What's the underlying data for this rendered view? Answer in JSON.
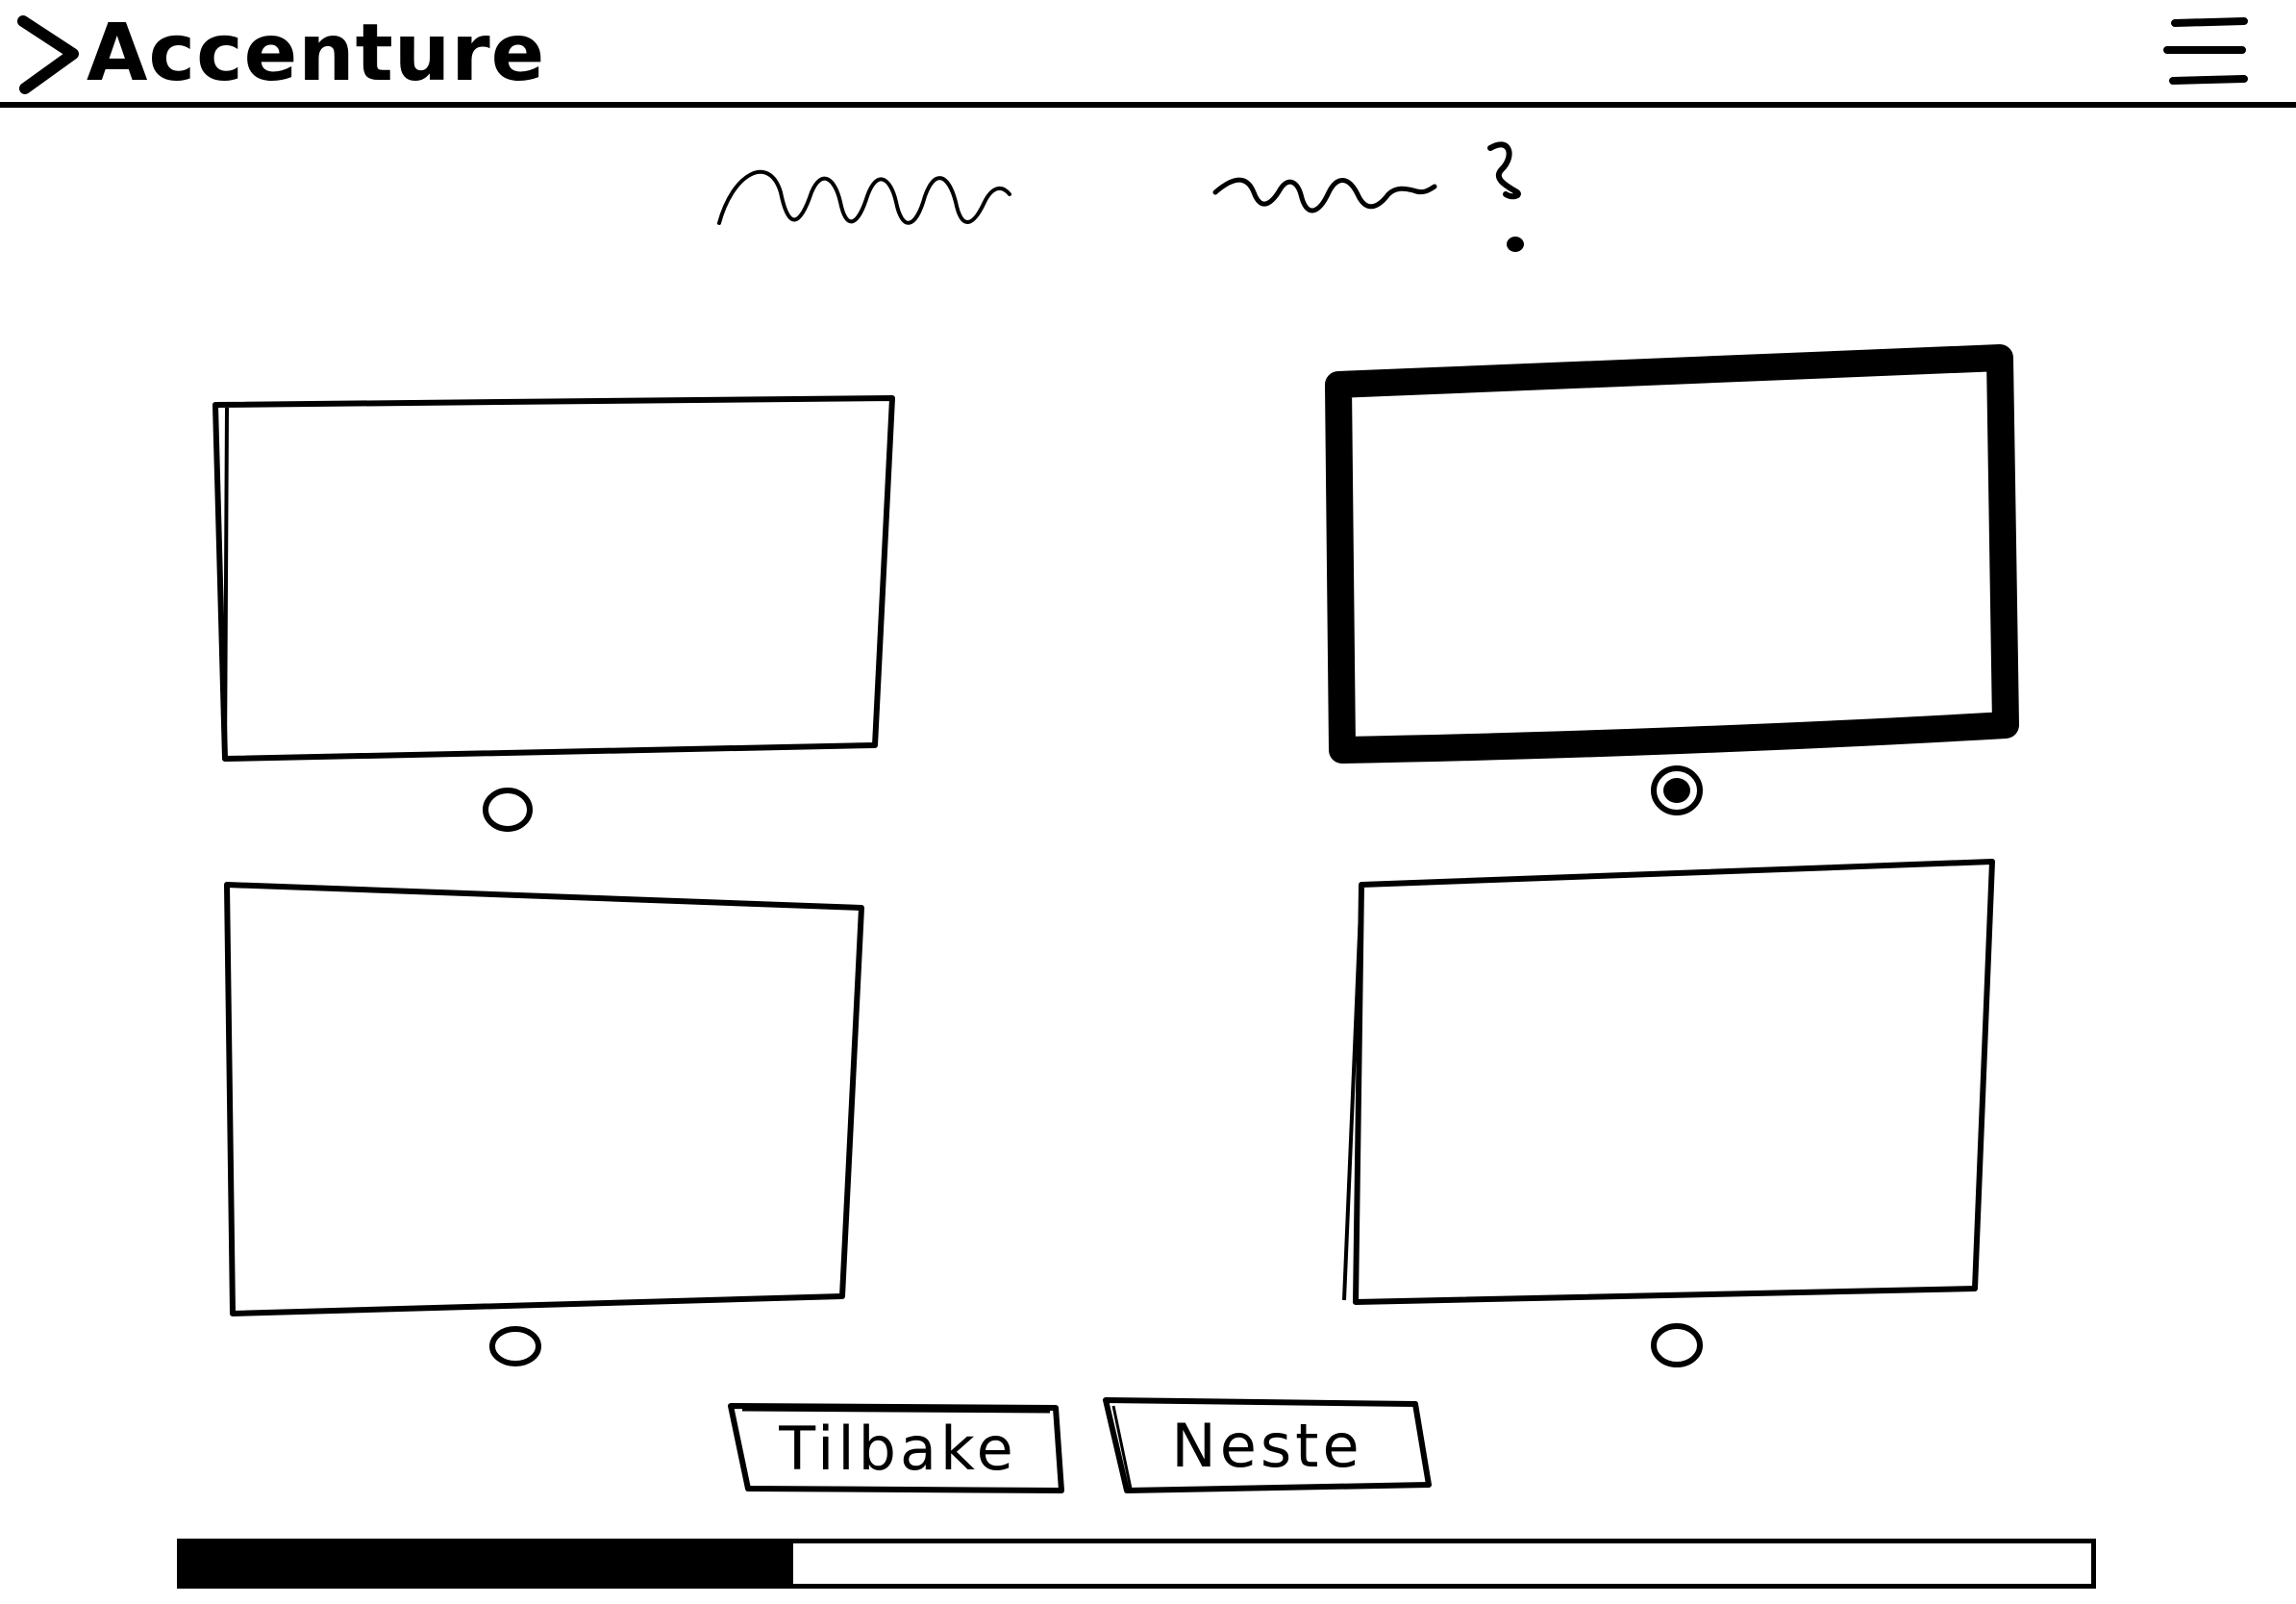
{
  "app": {
    "title": "Accenture"
  },
  "header": {
    "menu_icon": "hamburger-icon"
  },
  "question": {
    "text": ""
  },
  "options": [
    {
      "selected": false
    },
    {
      "selected": true
    },
    {
      "selected": false
    },
    {
      "selected": false
    }
  ],
  "buttons": {
    "back_label": "Tilbake",
    "next_label": "Neste"
  },
  "progress": {
    "value": 0.32
  }
}
